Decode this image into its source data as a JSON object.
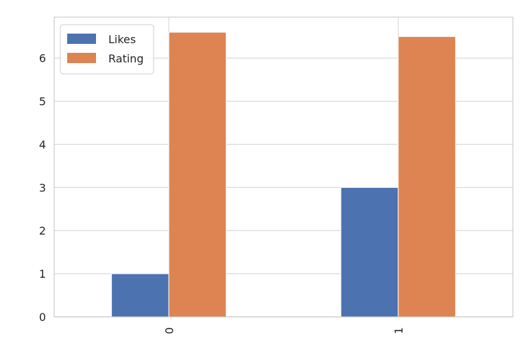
{
  "chart_data": {
    "type": "bar",
    "categories": [
      "0",
      "1"
    ],
    "series": [
      {
        "name": "Likes",
        "values": [
          1,
          3
        ],
        "color": "#4c72b0"
      },
      {
        "name": "Rating",
        "values": [
          6.6,
          6.5
        ],
        "color": "#dd8452"
      }
    ],
    "ylim": [
      0,
      6.95
    ],
    "yticks": [
      0,
      1,
      2,
      3,
      4,
      5,
      6
    ],
    "title": "",
    "xlabel": "",
    "ylabel": "",
    "grid": true,
    "legend_position": "top-left",
    "xtick_rotation": "vertical",
    "colors": {
      "grid": "#d9d9d9",
      "spine": "#cccccc",
      "background": "#ffffff"
    }
  }
}
